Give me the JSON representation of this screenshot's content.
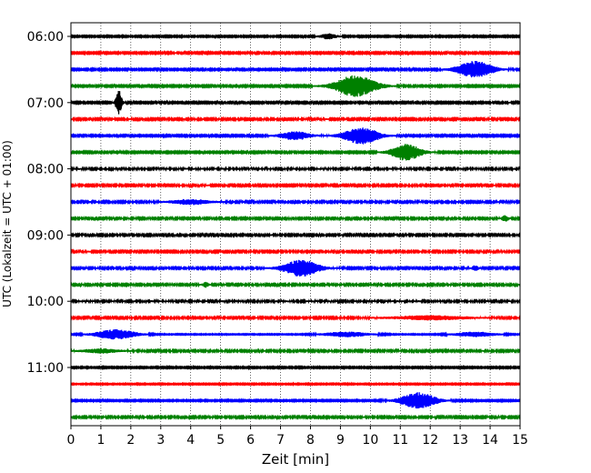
{
  "chart_data": {
    "type": "line",
    "title": "",
    "xlabel": "Zeit  [min]",
    "ylabel": "UTC (Lokalzeit = UTC + 01:00)",
    "xlim": [
      0,
      15
    ],
    "x_ticks": [
      "0",
      "1",
      "2",
      "3",
      "4",
      "5",
      "6",
      "7",
      "8",
      "9",
      "10",
      "11",
      "12",
      "13",
      "14",
      "15"
    ],
    "y_ticks": [
      {
        "label": "06:00",
        "trace_index": 0
      },
      {
        "label": "07:00",
        "trace_index": 4
      },
      {
        "label": "08:00",
        "trace_index": 8
      },
      {
        "label": "09:00",
        "trace_index": 12
      },
      {
        "label": "10:00",
        "trace_index": 16
      },
      {
        "label": "11:00",
        "trace_index": 20
      }
    ],
    "trace_interval_minutes": 15,
    "grid": "vertical dotted lines at each minute",
    "legend": "none",
    "colors": [
      "#000000",
      "#ff0000",
      "#0000ff",
      "#008000"
    ],
    "traces": [
      {
        "start": "06:00",
        "color": "#000000",
        "noise": 0.35,
        "events": [
          {
            "t": 8.6,
            "amp": 1.5,
            "dur": 0.3
          }
        ]
      },
      {
        "start": "06:15",
        "color": "#ff0000",
        "noise": 0.4,
        "events": []
      },
      {
        "start": "06:30",
        "color": "#0000ff",
        "noise": 0.4,
        "events": [
          {
            "t": 13.5,
            "amp": 5.0,
            "dur": 0.6
          }
        ]
      },
      {
        "start": "06:45",
        "color": "#008000",
        "noise": 0.4,
        "events": [
          {
            "t": 9.5,
            "amp": 6.5,
            "dur": 0.7
          }
        ]
      },
      {
        "start": "07:00",
        "color": "#000000",
        "noise": 0.4,
        "events": [
          {
            "t": 1.6,
            "amp": 8.0,
            "dur": 0.1
          }
        ]
      },
      {
        "start": "07:15",
        "color": "#ff0000",
        "noise": 0.45,
        "events": []
      },
      {
        "start": "07:30",
        "color": "#0000ff",
        "noise": 0.4,
        "events": [
          {
            "t": 7.5,
            "amp": 2.5,
            "dur": 0.5
          },
          {
            "t": 9.7,
            "amp": 5.0,
            "dur": 0.6
          }
        ]
      },
      {
        "start": "07:45",
        "color": "#008000",
        "noise": 0.4,
        "events": [
          {
            "t": 11.2,
            "amp": 5.0,
            "dur": 0.5
          }
        ]
      },
      {
        "start": "08:00",
        "color": "#000000",
        "noise": 0.5,
        "events": []
      },
      {
        "start": "08:15",
        "color": "#ff0000",
        "noise": 0.45,
        "events": []
      },
      {
        "start": "08:30",
        "color": "#0000ff",
        "noise": 0.45,
        "events": [
          {
            "t": 4.0,
            "amp": 1.5,
            "dur": 0.6
          }
        ]
      },
      {
        "start": "08:45",
        "color": "#008000",
        "noise": 0.45,
        "events": [
          {
            "t": 14.5,
            "amp": 2.0,
            "dur": 0.1
          }
        ]
      },
      {
        "start": "09:00",
        "color": "#000000",
        "noise": 0.45,
        "events": []
      },
      {
        "start": "09:15",
        "color": "#ff0000",
        "noise": 0.45,
        "events": []
      },
      {
        "start": "09:30",
        "color": "#0000ff",
        "noise": 0.45,
        "events": [
          {
            "t": 7.7,
            "amp": 5.0,
            "dur": 0.6
          },
          {
            "t": 13.5,
            "amp": 1.5,
            "dur": 0.1
          }
        ]
      },
      {
        "start": "09:45",
        "color": "#008000",
        "noise": 0.45,
        "events": [
          {
            "t": 4.5,
            "amp": 1.5,
            "dur": 0.1
          }
        ]
      },
      {
        "start": "10:00",
        "color": "#000000",
        "noise": 0.5,
        "events": []
      },
      {
        "start": "10:15",
        "color": "#ff0000",
        "noise": 0.45,
        "events": [
          {
            "t": 12.0,
            "amp": 1.2,
            "dur": 1.2
          }
        ]
      },
      {
        "start": "10:30",
        "color": "#0000ff",
        "noise": 0.25,
        "events": [
          {
            "t": 1.5,
            "amp": 3.0,
            "dur": 0.7
          },
          {
            "t": 9.2,
            "amp": 1.5,
            "dur": 0.8
          },
          {
            "t": 13.5,
            "amp": 1.5,
            "dur": 0.7
          }
        ]
      },
      {
        "start": "10:45",
        "color": "#008000",
        "noise": 0.45,
        "events": [
          {
            "t": 1.0,
            "amp": 1.2,
            "dur": 0.6
          }
        ]
      },
      {
        "start": "11:00",
        "color": "#000000",
        "noise": 0.35,
        "events": []
      },
      {
        "start": "11:15",
        "color": "#ff0000",
        "noise": 0.3,
        "events": []
      },
      {
        "start": "11:30",
        "color": "#0000ff",
        "noise": 0.35,
        "events": [
          {
            "t": 11.6,
            "amp": 5.0,
            "dur": 0.6
          }
        ]
      },
      {
        "start": "11:45",
        "color": "#008000",
        "noise": 0.45,
        "events": []
      }
    ]
  }
}
